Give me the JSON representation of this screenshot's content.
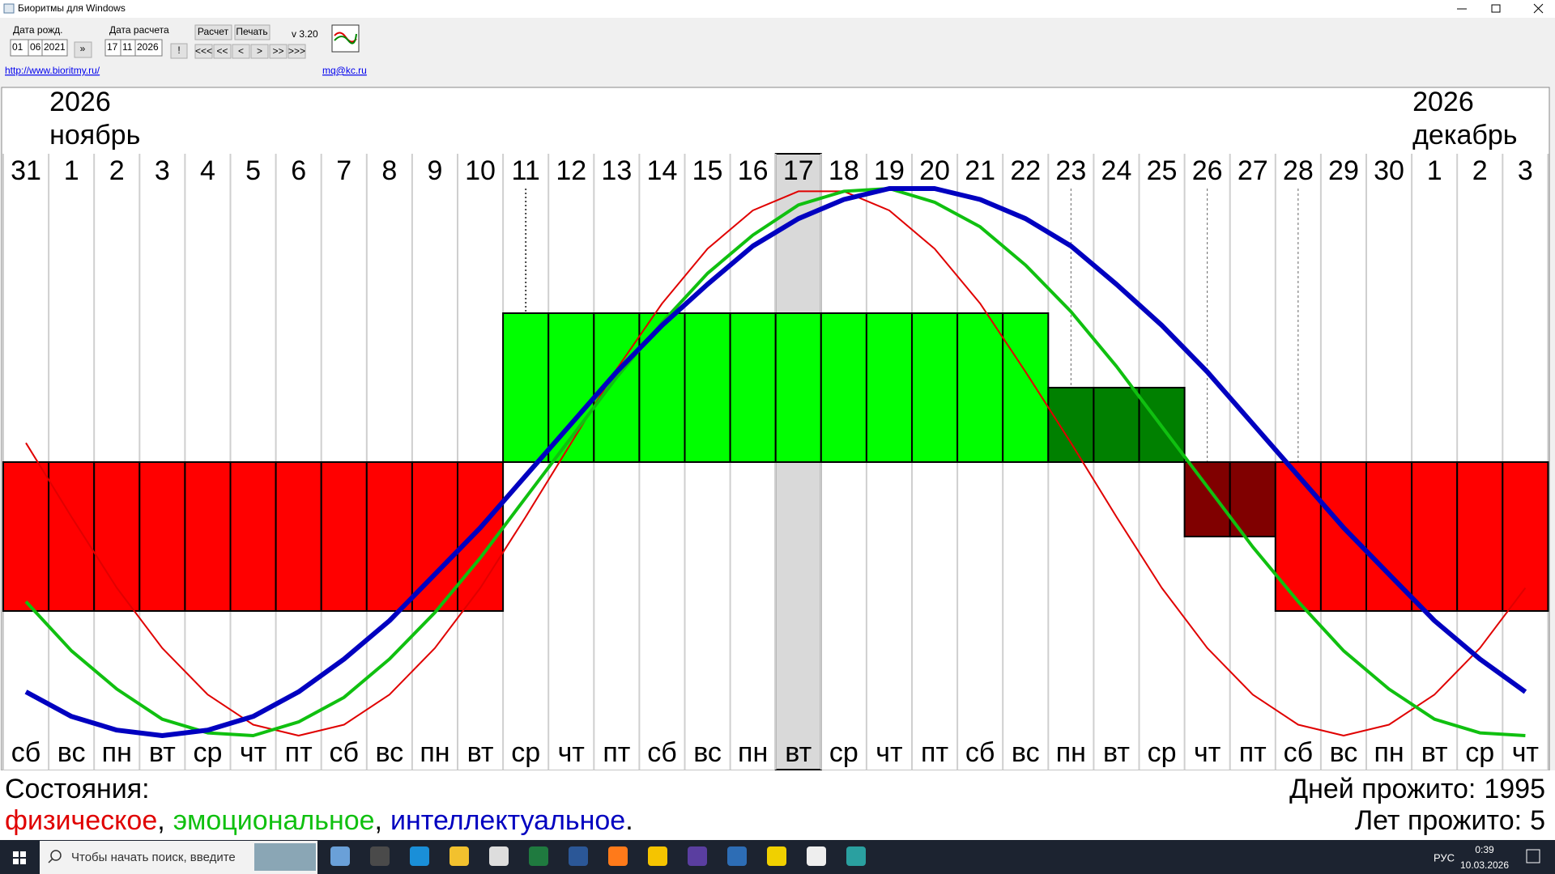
{
  "window": {
    "title": "Биоритмы для Windows"
  },
  "toolbar": {
    "birth_label": "Дата рожд.",
    "birth_date": [
      "01",
      "06",
      "2021"
    ],
    "birth_button": "»",
    "calc_label": "Дата расчета",
    "calc_date": [
      "17",
      "11",
      "2026"
    ],
    "calc_button": "!",
    "calc": "Расчет",
    "print": "Печать",
    "version": "v 3.20",
    "nav": [
      "<<<",
      "<<",
      "<",
      ">",
      ">>",
      ">>>"
    ],
    "site": "http://www.bioritmy.ru/",
    "email": "mq@kc.ru"
  },
  "chart_data": {
    "type": "biorhythm",
    "months": [
      {
        "days": [
          {
            "date": "31",
            "weekday": "сб",
            "color": "#000000"
          }
        ]
      },
      {
        "year": "2026",
        "name": "ноябрь",
        "days": [
          {
            "date": "1",
            "weekday": "вс",
            "color": "#e00000"
          },
          {
            "date": "2",
            "weekday": "пн",
            "color": "#000000"
          },
          {
            "date": "3",
            "weekday": "вт",
            "color": "#000000"
          },
          {
            "date": "4",
            "weekday": "ср",
            "color": "#000000"
          },
          {
            "date": "5",
            "weekday": "чт",
            "color": "#000000"
          },
          {
            "date": "6",
            "weekday": "пт",
            "color": "#000000"
          },
          {
            "date": "7",
            "weekday": "сб",
            "color": "#000000"
          },
          {
            "date": "8",
            "weekday": "вс",
            "color": "#e00000"
          },
          {
            "date": "9",
            "weekday": "пн",
            "color": "#000000"
          },
          {
            "date": "10",
            "weekday": "вт",
            "color": "#000000"
          },
          {
            "date": "11",
            "weekday": "ср",
            "color": "#000000"
          },
          {
            "date": "12",
            "weekday": "чт",
            "color": "#000000"
          },
          {
            "date": "13",
            "weekday": "пт",
            "color": "#000000"
          },
          {
            "date": "14",
            "weekday": "сб",
            "color": "#000000"
          },
          {
            "date": "15",
            "weekday": "вс",
            "color": "#e00000"
          },
          {
            "date": "16",
            "weekday": "пн",
            "color": "#000000"
          },
          {
            "date": "17",
            "weekday": "вт",
            "color": "#000000",
            "selected": true
          },
          {
            "date": "18",
            "weekday": "ср",
            "color": "#000000"
          },
          {
            "date": "19",
            "weekday": "чт",
            "color": "#000000"
          },
          {
            "date": "20",
            "weekday": "пт",
            "color": "#000000"
          },
          {
            "date": "21",
            "weekday": "сб",
            "color": "#000000"
          },
          {
            "date": "22",
            "weekday": "вс",
            "color": "#e00000"
          },
          {
            "date": "23",
            "weekday": "пн",
            "color": "#000000"
          },
          {
            "date": "24",
            "weekday": "вт",
            "color": "#000000"
          },
          {
            "date": "25",
            "weekday": "ср",
            "color": "#000000"
          },
          {
            "date": "26",
            "weekday": "чт",
            "color": "#000000"
          },
          {
            "date": "27",
            "weekday": "пт",
            "color": "#000000"
          },
          {
            "date": "28",
            "weekday": "сб",
            "color": "#000000"
          },
          {
            "date": "29",
            "weekday": "вс",
            "color": "#e00000"
          },
          {
            "date": "30",
            "weekday": "пн",
            "color": "#000000"
          }
        ]
      },
      {
        "year": "2026",
        "name": "декабрь",
        "days": [
          {
            "date": "1",
            "weekday": "вт",
            "color": "#000000"
          },
          {
            "date": "2",
            "weekday": "ср",
            "color": "#000000"
          },
          {
            "date": "3",
            "weekday": "чт",
            "color": "#000000"
          }
        ]
      }
    ],
    "states": [
      -2,
      -2,
      -2,
      -2,
      -2,
      -2,
      -2,
      -2,
      -2,
      -2,
      -2,
      2,
      2,
      2,
      2,
      2,
      2,
      2,
      2,
      2,
      2,
      2,
      2,
      1,
      1,
      1,
      -1,
      -1,
      -2,
      -2,
      -2,
      -2,
      -2,
      -2
    ],
    "state_colors": {
      "-2": "#ff0000",
      "-1": "#800000",
      "1": "#008000",
      "2": "#00ff00"
    },
    "series": [
      {
        "name": "физическое",
        "color": "#e00000",
        "width": 2,
        "values": [
          7,
          -20,
          -46,
          -68,
          -85,
          -96,
          -100,
          -96,
          -85,
          -68,
          -46,
          -20,
          7,
          34,
          58,
          78,
          92,
          99,
          99,
          92,
          78,
          58,
          33,
          7,
          -20,
          -46,
          -68,
          -85,
          -96,
          -100,
          -96,
          -85,
          -68,
          -46
        ]
      },
      {
        "name": "эмоциональное",
        "color": "#10c010",
        "width": 4,
        "values": [
          -51,
          -69,
          -83,
          -94,
          -99,
          -100,
          -95,
          -86,
          -72,
          -55,
          -35,
          -13,
          9,
          31,
          51,
          69,
          83,
          94,
          99,
          100,
          95,
          86,
          72,
          55,
          35,
          13,
          -9,
          -31,
          -51,
          -69,
          -83,
          -94,
          -99,
          -100
        ]
      },
      {
        "name": "интеллектуальное",
        "color": "#0000c0",
        "width": 6,
        "values": [
          -84,
          -93,
          -98,
          -100,
          -98,
          -93,
          -84,
          -72,
          -58,
          -41,
          -24,
          -5,
          14,
          33,
          50,
          65,
          79,
          89,
          96,
          100,
          100,
          96,
          89,
          79,
          65,
          50,
          33,
          14,
          -5,
          -24,
          -41,
          -58,
          -72,
          -84
        ]
      }
    ],
    "legend_title": "Состояния:",
    "legend_separator": ",",
    "legend_end": "."
  },
  "stats": {
    "days_label": "Дней прожито:",
    "days": 1995,
    "years_label": "Лет прожито:",
    "years": 5
  },
  "taskbar": {
    "search": "Чтобы начать поиск, введите",
    "lang": "РУС",
    "time": "0:39",
    "date": "10.03.2026"
  }
}
